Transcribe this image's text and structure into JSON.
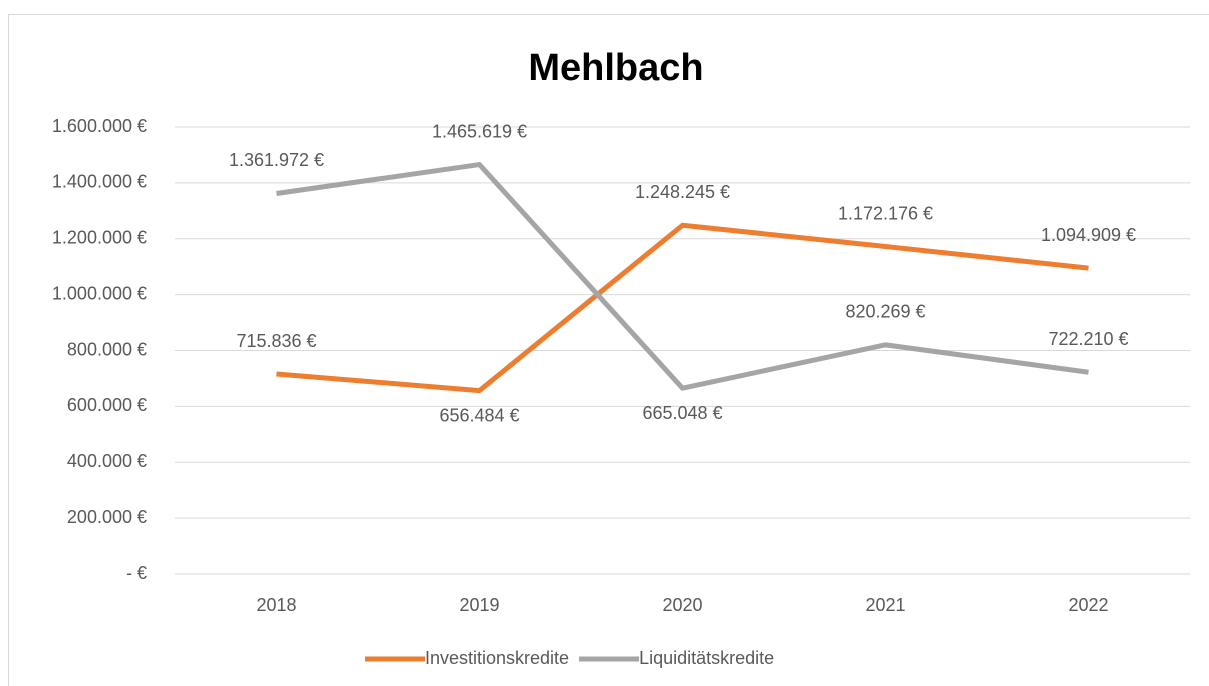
{
  "chart_data": {
    "type": "line",
    "title": "Mehlbach",
    "categories": [
      "2018",
      "2019",
      "2020",
      "2021",
      "2022"
    ],
    "series": [
      {
        "name": "Investitionskredite",
        "color": "#ed7d31",
        "values": [
          715836,
          656484,
          1248245,
          1172176,
          1094909
        ],
        "value_labels": [
          "715.836 €",
          "656.484 €",
          "1.248.245 €",
          "1.172.176 €",
          "1.094.909 €"
        ]
      },
      {
        "name": "Liquiditätskredite",
        "color": "#a5a5a5",
        "values": [
          1361972,
          1465619,
          665048,
          820269,
          722210
        ],
        "value_labels": [
          "1.361.972 €",
          "1.465.619 €",
          "665.048 €",
          "820.269 €",
          "722.210 €"
        ]
      }
    ],
    "ylim": [
      0,
      1600000
    ],
    "yticks": [
      {
        "value": 0,
        "label": "- €"
      },
      {
        "value": 200000,
        "label": "200.000 €"
      },
      {
        "value": 400000,
        "label": "400.000 €"
      },
      {
        "value": 600000,
        "label": "600.000 €"
      },
      {
        "value": 800000,
        "label": "800.000 €"
      },
      {
        "value": 1000000,
        "label": "1.000.000 €"
      },
      {
        "value": 1200000,
        "label": "1.200.000 €"
      },
      {
        "value": 1400000,
        "label": "1.400.000 €"
      },
      {
        "value": 1600000,
        "label": "1.600.000 €"
      }
    ],
    "grid": true,
    "legend": "bottom"
  }
}
